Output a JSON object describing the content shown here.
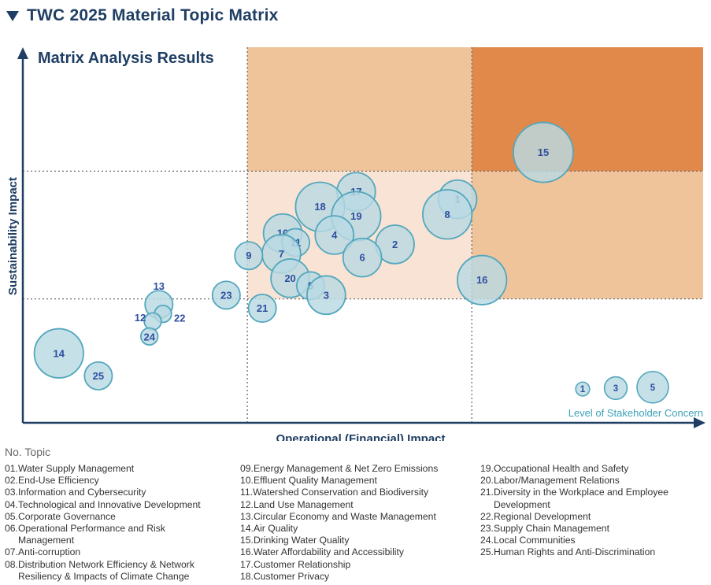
{
  "header": {
    "title": "TWC 2025 Material Topic Matrix"
  },
  "chart_data": {
    "type": "scatter",
    "title": "Matrix Analysis Results",
    "xlabel": "Operational (Financial) Impact",
    "ylabel": "Sustainability Impact",
    "xlim": [
      0,
      100
    ],
    "ylim": [
      0,
      100
    ],
    "thresholds": {
      "x": [
        33,
        66
      ],
      "y": [
        33,
        67
      ]
    },
    "quadrant_colors": {
      "low": "#ffffff",
      "medium": "#f8e3d4",
      "high": "#f0c49b",
      "very_high": "#e0894a"
    },
    "bubble_fill": "#b9d9e3",
    "bubble_stroke": "#53a7bd",
    "points": [
      {
        "label": "15",
        "x": 76.5,
        "y": 72.0,
        "concern": 5
      },
      {
        "label": "17",
        "x": 49.0,
        "y": 61.5,
        "concern": 3
      },
      {
        "label": "1",
        "x": 63.9,
        "y": 59.5,
        "concern": 3
      },
      {
        "label": "18",
        "x": 43.7,
        "y": 57.5,
        "concern": 4
      },
      {
        "label": "19",
        "x": 49.0,
        "y": 55.0,
        "concern": 4
      },
      {
        "label": "8",
        "x": 62.4,
        "y": 55.5,
        "concern": 4
      },
      {
        "label": "4",
        "x": 45.8,
        "y": 50.0,
        "concern": 3
      },
      {
        "label": "2",
        "x": 54.7,
        "y": 47.5,
        "concern": 3
      },
      {
        "label": "10",
        "x": 38.2,
        "y": 50.5,
        "concern": 3
      },
      {
        "label": "11",
        "x": 40.1,
        "y": 48.0,
        "concern": 2
      },
      {
        "label": "7",
        "x": 38.0,
        "y": 45.0,
        "concern": 3
      },
      {
        "label": "9",
        "x": 33.2,
        "y": 44.5,
        "concern": 2
      },
      {
        "label": "6",
        "x": 49.9,
        "y": 44.0,
        "concern": 3
      },
      {
        "label": "20",
        "x": 39.3,
        "y": 38.5,
        "concern": 3
      },
      {
        "label": "5",
        "x": 42.3,
        "y": 36.5,
        "concern": 2
      },
      {
        "label": "3",
        "x": 44.6,
        "y": 34.0,
        "concern": 3
      },
      {
        "label": "16",
        "x": 67.5,
        "y": 38.0,
        "concern": 4
      },
      {
        "label": "23",
        "x": 29.9,
        "y": 34.0,
        "concern": 2
      },
      {
        "label": "21",
        "x": 35.2,
        "y": 30.5,
        "concern": 2
      },
      {
        "label": "13",
        "x": 20.0,
        "y": 31.5,
        "concern": 2
      },
      {
        "label": "22",
        "x": 20.6,
        "y": 29.0,
        "concern": 1
      },
      {
        "label": "12",
        "x": 19.1,
        "y": 27.0,
        "concern": 1
      },
      {
        "label": "24",
        "x": 18.6,
        "y": 23.0,
        "concern": 1
      },
      {
        "label": "14",
        "x": 5.3,
        "y": 18.5,
        "concern": 4
      },
      {
        "label": "25",
        "x": 11.1,
        "y": 12.5,
        "concern": 2
      }
    ],
    "size_legend": {
      "title": "Level of Stakeholder Concern",
      "items": [
        {
          "label": "1",
          "concern": 1
        },
        {
          "label": "3",
          "concern": 3
        },
        {
          "label": "5",
          "concern": 5
        }
      ]
    }
  },
  "legend": {
    "title": "No. Topic",
    "columns": [
      [
        {
          "num": "01. ",
          "text": "Water Supply Management"
        },
        {
          "num": "02. ",
          "text": "End-Use Efficiency"
        },
        {
          "num": "03. ",
          "text": "Information and Cybersecurity"
        },
        {
          "num": "04. ",
          "text": "Technological and Innovative Development"
        },
        {
          "num": "05. ",
          "text": "Corporate Governance"
        },
        {
          "num": "06. ",
          "text": "Operational Performance and Risk\nManagement"
        },
        {
          "num": "07. ",
          "text": "Anti-corruption"
        },
        {
          "num": "08. ",
          "text": "Distribution Network Efficiency & Network\nResiliency & Impacts of Climate Change"
        }
      ],
      [
        {
          "num": "09.",
          "text": "Energy Management & Net Zero Emissions"
        },
        {
          "num": "10. ",
          "text": "Effluent Quality Management"
        },
        {
          "num": "11. ",
          "text": "Watershed Conservation and Biodiversity"
        },
        {
          "num": "12. ",
          "text": "Land Use Management"
        },
        {
          "num": "13. ",
          "text": "Circular Economy and Waste Management"
        },
        {
          "num": "14. ",
          "text": "Air Quality"
        },
        {
          "num": "15. ",
          "text": "Drinking Water Quality"
        },
        {
          "num": "16. ",
          "text": "Water Affordability and Accessibility"
        },
        {
          "num": "17. ",
          "text": "Customer Relationship"
        },
        {
          "num": "18. ",
          "text": "Customer Privacy"
        }
      ],
      [
        {
          "num": "19. ",
          "text": "Occupational Health and Safety"
        },
        {
          "num": "20. ",
          "text": "Labor/Management Relations"
        },
        {
          "num": "21. ",
          "text": "Diversity in the Workplace and Employee\nDevelopment"
        },
        {
          "num": "22. ",
          "text": "Regional Development"
        },
        {
          "num": "23. ",
          "text": "Supply Chain Management"
        },
        {
          "num": "24. ",
          "text": "Local Communities"
        },
        {
          "num": "25. ",
          "text": "Human Rights and Anti-Discrimination"
        }
      ]
    ]
  }
}
